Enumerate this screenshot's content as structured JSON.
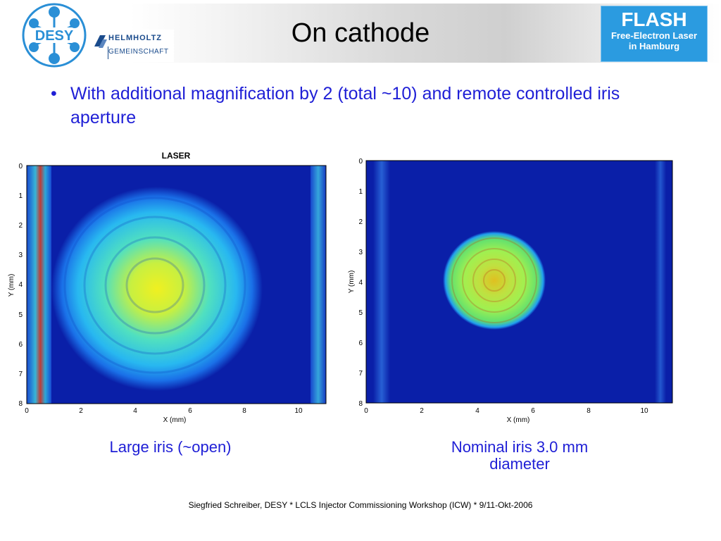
{
  "header": {
    "title": "On cathode",
    "desy_logo_text": "DESY",
    "helmholtz_line1": "HELMHOLTZ",
    "helmholtz_line2": "GEMEINSCHAFT",
    "flash_title": "FLASH",
    "flash_line1": "Free-Electron Laser",
    "flash_line2": "in Hamburg"
  },
  "bullet": {
    "marker": "•",
    "text": "With additional magnification by 2 (total ~10) and remote controlled iris aperture"
  },
  "plots": [
    {
      "title": "LASER",
      "xlabel": "X (mm)",
      "ylabel": "Y (mm)",
      "xticks": [
        "0",
        "2",
        "4",
        "6",
        "8",
        "10"
      ],
      "yticks": [
        "0",
        "1",
        "2",
        "3",
        "4",
        "5",
        "6",
        "7",
        "8"
      ],
      "caption": "Large iris (~open)"
    },
    {
      "title": "",
      "xlabel": "X (mm)",
      "ylabel": "Y (mm)",
      "xticks": [
        "0",
        "2",
        "4",
        "6",
        "8",
        "10"
      ],
      "yticks": [
        "0",
        "1",
        "2",
        "3",
        "4",
        "5",
        "6",
        "7",
        "8"
      ],
      "caption_line1": "Nominal iris 3.0 mm",
      "caption_line2": "diameter"
    }
  ],
  "footer": "Siegfried Schreiber, DESY  * LCLS Injector Commissioning Workshop (ICW) * 9/11-Okt-2006",
  "colors": {
    "accent_blue": "#1f1fd6",
    "flash_blue": "#2b9be0",
    "desy_blue": "#2a8fd6",
    "image_background": "#0a1fa8"
  }
}
